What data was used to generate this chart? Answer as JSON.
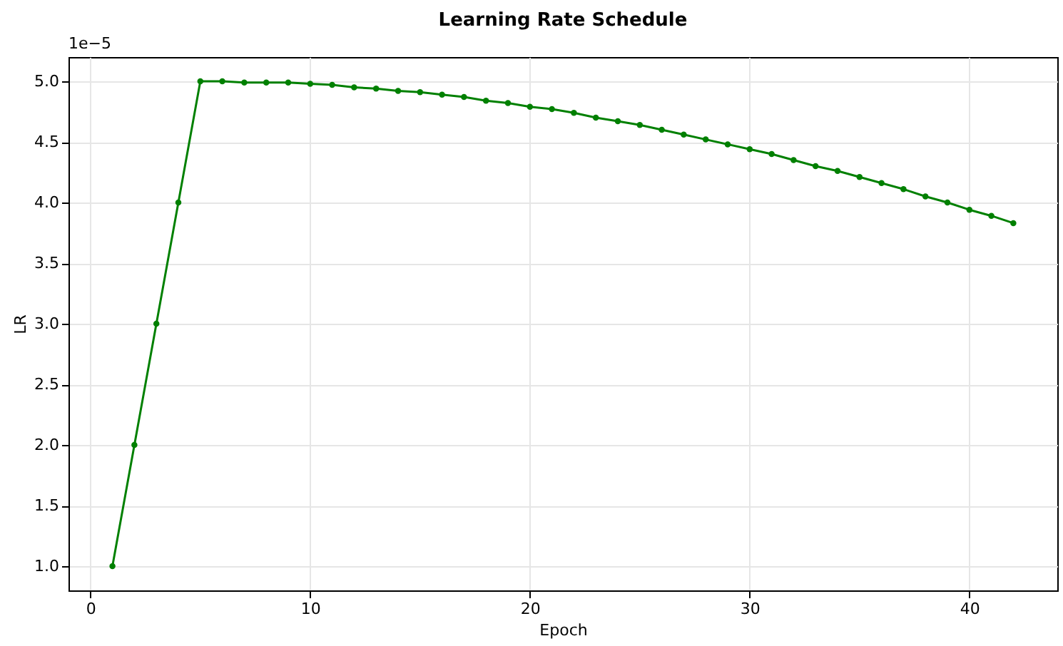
{
  "chart_data": {
    "type": "line",
    "title": "Learning Rate Schedule",
    "xlabel": "Epoch",
    "ylabel": "LR",
    "x": [
      1,
      2,
      3,
      4,
      5,
      6,
      7,
      8,
      9,
      10,
      11,
      12,
      13,
      14,
      15,
      16,
      17,
      18,
      19,
      20,
      21,
      22,
      23,
      24,
      25,
      26,
      27,
      28,
      29,
      30,
      31,
      32,
      33,
      34,
      35,
      36,
      37,
      38,
      39,
      40,
      41,
      42
    ],
    "series": [
      {
        "color": "#008000",
        "values": [
          1.0,
          2.0,
          3.0,
          4.0,
          5.0,
          5.0,
          4.99,
          4.99,
          4.99,
          4.98,
          4.97,
          4.95,
          4.94,
          4.92,
          4.91,
          4.89,
          4.87,
          4.84,
          4.82,
          4.79,
          4.77,
          4.74,
          4.7,
          4.67,
          4.64,
          4.6,
          4.56,
          4.52,
          4.48,
          4.44,
          4.4,
          4.35,
          4.3,
          4.26,
          4.21,
          4.16,
          4.11,
          4.05,
          4.0,
          3.94,
          3.89,
          3.83
        ]
      }
    ],
    "xlim": [
      -1,
      44
    ],
    "xticks": [
      0,
      10,
      20,
      30,
      40
    ],
    "ylim": [
      0.8,
      5.2
    ],
    "yticks": [
      {
        "value": 1.0,
        "label": "1.0"
      },
      {
        "value": 1.5,
        "label": "1.5"
      },
      {
        "value": 2.0,
        "label": "2.0"
      },
      {
        "value": 2.5,
        "label": "2.5"
      },
      {
        "value": 3.0,
        "label": "3.0"
      },
      {
        "value": 3.5,
        "label": "3.5"
      },
      {
        "value": 4.0,
        "label": "4.0"
      },
      {
        "value": 4.5,
        "label": "4.5"
      },
      {
        "value": 5.0,
        "label": "5.0"
      }
    ],
    "annotations": [
      "1e−5"
    ],
    "grid": true,
    "marker": "circle",
    "line_style": "solid"
  }
}
